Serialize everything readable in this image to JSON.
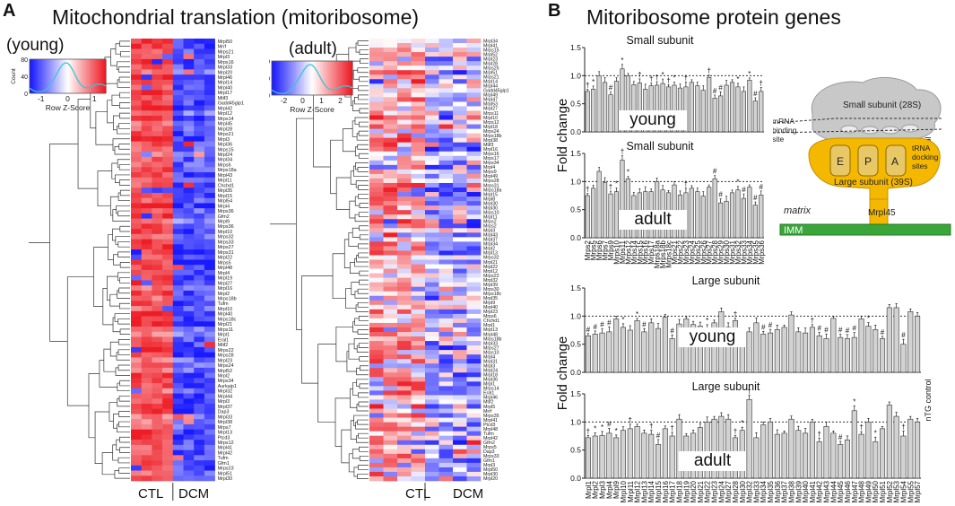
{
  "panel_a": {
    "letter": "A",
    "title": "Mitochondrial translation (mitoribosome)",
    "heatmaps": [
      {
        "id": "young",
        "label": "(young)",
        "key_title": "Row Z-Score",
        "count_label": "Count",
        "key_ticks": [
          "-1",
          "0",
          "1"
        ],
        "count_ticks": [
          "0",
          "40",
          "80"
        ],
        "genes": [
          "Mrpl50",
          "Mrrf",
          "Mrps21",
          "Mrpl3",
          "Mrps16",
          "Mrpl33",
          "Mrpl20",
          "Mrpl46",
          "Mrpl14",
          "Mrpl40",
          "Mrpl17",
          "Mtif3",
          "Gadd45gip1",
          "Mrpl42",
          "Mrpl12",
          "Mrps14",
          "Mrpl45",
          "Mrpl28",
          "Mrps21",
          "Mrpl3",
          "Mrpl36",
          "Mrps15",
          "Mrpl24",
          "Mrpl34",
          "Mrps6",
          "Mrps18a",
          "Mrpl43",
          "Mrpl11",
          "Chchd1",
          "Mrpl35",
          "Mrpl15",
          "Mrpl54",
          "Mrpl4",
          "Mrps36",
          "Gfm2",
          "Mrpl9",
          "Mrps36",
          "Mrpl10",
          "Mrps32",
          "Mrps33",
          "Mrps27",
          "Mrps31",
          "Mrpl22",
          "Mrps5",
          "Mrpl48",
          "Mrpl4",
          "Mrpl19",
          "Mrpl27",
          "Mrpl16",
          "Mrpl2",
          "Mrps18b",
          "Tufm",
          "Mrpl10",
          "Mrpl40",
          "Mrps18c",
          "Mrpl21",
          "Mrps11",
          "Mrpl1",
          "Eral1",
          "Mtif2",
          "Mrps22",
          "Mrps28",
          "Mrpl23",
          "Mrps24",
          "Mrpl52",
          "Mrpl2",
          "Mrps34",
          "Aurkaip1",
          "Mrpl32",
          "Mrpl44",
          "Mrpl3",
          "Mrpl37",
          "Dap3",
          "Mrpl33",
          "Mrpl38",
          "Mrps7",
          "Mrpl13",
          "Ptcd3",
          "Mrps12",
          "Mrpl41",
          "Mrpl42",
          "Tufm",
          "Gfm1",
          "Mrps23",
          "Mrpl51",
          "Mrpl30"
        ],
        "group_labels": [
          "CTL",
          "DCM"
        ]
      },
      {
        "id": "adult",
        "label": "(adult)",
        "key_title": "Row Z-Score",
        "count_label": "Count",
        "key_ticks": [
          "-2",
          "0",
          "1",
          "2"
        ],
        "count_ticks": [
          "0",
          "50",
          "100"
        ],
        "genes": [
          "Mrpl34",
          "Mrpl41",
          "Mrps15",
          "Mrpl52",
          "Mrpl23",
          "Mrpl28",
          "Mrps25",
          "Mrpl51",
          "Mrps21",
          "Mrpl14",
          "Mrpl44",
          "Gadd45gip1",
          "Mrpl49",
          "Mrpl47",
          "Mrpl53",
          "Mrpl27",
          "Mrps11",
          "Mrpl10",
          "Mrps12",
          "Mrpl18",
          "Mrps24",
          "Mrps18b",
          "Mrpl38",
          "Mtif3",
          "Mrpl16",
          "Mrps16",
          "Mrps17",
          "Mrps34",
          "Mrpl4",
          "Mrps9",
          "Mrpl49",
          "Mrps28",
          "Mrps31",
          "Mrps18a",
          "Mrpl15",
          "Mrpl8",
          "Mrpl30",
          "Mrpl30",
          "Mrps10",
          "Mrpl11",
          "Mrps2",
          "Mrps2",
          "Mrpl3",
          "Mrpl43",
          "Mrpl37",
          "Mrpl34",
          "Mrpl2",
          "Mrpl13",
          "Mrps32",
          "Mrpl21",
          "Mrpl22",
          "Mrpl12",
          "Mrps22",
          "Mrpl32",
          "Mrpl39",
          "Mrps30",
          "Mrps18c",
          "Mrpl35",
          "Mrpl9",
          "Mrpl40",
          "Mrpl23",
          "Mrps6",
          "Chchd1",
          "Mrpl1",
          "Mrpl13",
          "Mrpl48",
          "Mrps18b",
          "Mrpl33",
          "Mrps27",
          "Mrps10",
          "Mrpl4",
          "Mrpl31",
          "Mrpl3",
          "Mrpl24",
          "Mrpl18",
          "Mrpl36",
          "Mrpl1",
          "Mrps14",
          "Eral1",
          "Mrpl46",
          "Mtif2",
          "Mrpl5",
          "Mrrf",
          "Mrps35",
          "Mrpl41",
          "Ptcd3",
          "Mrpl48",
          "Tufm",
          "Mrpl42",
          "Gfm2",
          "Mrps5",
          "Dap3",
          "Mrps33",
          "Gfm1",
          "Mrpl3",
          "Mrpl50",
          "Mrpl30",
          "Mrpl20"
        ],
        "group_labels": [
          "CTL",
          "DCM"
        ]
      }
    ],
    "colors": {
      "high": "#ee1c25",
      "mid": "#ffffff",
      "low": "#1a1aff",
      "density": "#39c6d8"
    }
  },
  "panel_b": {
    "letter": "B",
    "title": "Mitoribosome protein genes",
    "y_label": "Fold change",
    "side_label": "nTG control",
    "small_genes": [
      "Mrps2",
      "Mrps5",
      "Mrps6",
      "Mrps7",
      "Mrps9",
      "Mrps10",
      "Mrps11",
      "Mrps12",
      "Mrps14",
      "Mrps15",
      "Mrps16",
      "Mrps17",
      "Mrps18a",
      "Mrps18b",
      "Mrps18c",
      "Mrps21",
      "Mrps22",
      "Mrps23",
      "Mrps24",
      "Mrps25",
      "Mrps26",
      "Mrps27",
      "Mrps28",
      "Mrps29",
      "Mrps30",
      "Mrps31",
      "Mrps32",
      "Mrps33",
      "Mrps34",
      "Mrps35",
      "Mrps36"
    ],
    "large_genes": [
      "Mrpl1",
      "Mrpl2",
      "Mrpl3",
      "Mrpl4",
      "Mrpl9",
      "Mrpl10",
      "Mrpl11",
      "Mrpl12",
      "Mrpl13",
      "Mrpl14",
      "Mrpl15",
      "Mrpl16",
      "Mrpl17",
      "Mrpl18",
      "Mrpl19",
      "Mrpl20",
      "Mrpl21",
      "Mrpl22",
      "Mrpl23",
      "Mrpl24",
      "Mrpl27",
      "Mrpl28",
      "Mrpl30",
      "Mrpl32",
      "Mrpl33",
      "Mrpl34",
      "Mrpl35",
      "Mrpl36",
      "Mrpl37",
      "Mrpl38",
      "Mrpl39",
      "Mrpl40",
      "Mrpl41",
      "Mrpl42",
      "Mrpl43",
      "Mrpl44",
      "Mrpl45",
      "Mrpl46",
      "Mrpl47",
      "Mrpl48",
      "Mrpl49",
      "Mrpl50",
      "Mrpl51",
      "Mrpl52",
      "Mrpl53",
      "Mrpl54",
      "Mrpl55",
      "Mrpl57"
    ],
    "charts": [
      {
        "id": "small-young",
        "title": "Small subunit",
        "age": "young",
        "axis": [
          "0.0",
          "0.5",
          "1.0",
          "1.5"
        ],
        "ymax": 1.5,
        "values": [
          0.72,
          0.76,
          1.0,
          0.88,
          0.66,
          0.9,
          1.12,
          1.0,
          0.84,
          0.87,
          0.76,
          0.82,
          0.83,
          0.86,
          0.8,
          0.83,
          0.78,
          0.8,
          0.88,
          0.82,
          0.74,
          0.97,
          0.6,
          0.64,
          0.83,
          0.88,
          0.8,
          0.72,
          0.92,
          0.55,
          0.72
        ],
        "marks": [
          "†",
          "*",
          "",
          "",
          "#",
          "",
          "*",
          "",
          "",
          "†",
          "",
          "†",
          "†",
          "*",
          "†",
          "*",
          "",
          "†",
          "",
          "",
          "",
          "†",
          "#",
          "#",
          "",
          "",
          "*",
          "",
          "*",
          "#",
          "†"
        ]
      },
      {
        "id": "small-adult",
        "title": "Small subunit",
        "age": "adult",
        "axis": [
          "0.0",
          "0.5",
          "1.0",
          "1.5"
        ],
        "ymax": 1.5,
        "values": [
          0.75,
          0.88,
          1.18,
          0.98,
          0.78,
          0.82,
          1.38,
          1.05,
          0.75,
          0.8,
          0.82,
          0.82,
          1.0,
          0.85,
          0.8,
          0.94,
          0.76,
          0.8,
          0.88,
          0.82,
          0.74,
          0.9,
          1.05,
          0.62,
          0.65,
          0.8,
          0.85,
          0.7,
          0.9,
          0.58,
          0.76
        ],
        "marks": [
          "†",
          "",
          "",
          "",
          "†",
          "*",
          "†",
          "*",
          "",
          "",
          "",
          "",
          "",
          "",
          "",
          "",
          "",
          "†",
          "",
          "",
          "",
          "",
          "#",
          "#",
          "",
          "",
          "*",
          "#",
          "",
          "#",
          "#"
        ]
      },
      {
        "id": "large-young",
        "title": "Large subunit",
        "age": "young",
        "axis": [
          "0.0",
          "0.5",
          "1.0",
          "1.5"
        ],
        "ymax": 1.5,
        "values": [
          0.65,
          0.68,
          0.7,
          0.72,
          0.95,
          0.8,
          0.75,
          0.92,
          0.72,
          0.88,
          0.78,
          0.98,
          0.6,
          0.86,
          0.95,
          0.85,
          0.82,
          0.76,
          0.88,
          1.08,
          0.8,
          0.92,
          0.7,
          0.72,
          0.88,
          0.68,
          0.7,
          0.76,
          0.8,
          1.02,
          0.72,
          0.7,
          0.8,
          0.65,
          0.6,
          0.96,
          0.62,
          0.6,
          0.62,
          0.95,
          0.82,
          0.76,
          0.6,
          1.15,
          1.15,
          0.5,
          1.08,
          1.0
        ],
        "marks": [
          "#",
          "#",
          "#",
          "#",
          "",
          "*",
          "",
          "*",
          "#",
          "",
          "",
          "",
          "#",
          "",
          "",
          "",
          "",
          "*",
          "",
          "",
          "",
          "†",
          "",
          "",
          "",
          "#",
          "#",
          "",
          "",
          "",
          "",
          "",
          "†",
          "#",
          "#",
          "",
          "#",
          "#",
          "#",
          "",
          "*",
          "",
          "#",
          "",
          "",
          "#",
          "",
          ""
        ]
      },
      {
        "id": "large-adult",
        "title": "Large subunit",
        "age": "adult",
        "axis": [
          "0.0",
          "0.5",
          "1.0",
          "1.5"
        ],
        "ymax": 1.5,
        "values": [
          0.72,
          0.75,
          0.76,
          0.8,
          0.72,
          0.85,
          0.88,
          0.92,
          0.8,
          0.78,
          0.6,
          0.88,
          0.75,
          1.05,
          0.75,
          0.8,
          0.9,
          1.0,
          1.05,
          1.1,
          1.05,
          0.72,
          0.85,
          1.4,
          0.72,
          0.95,
          1.0,
          0.78,
          0.8,
          1.05,
          0.85,
          0.8,
          1.0,
          0.65,
          0.92,
          0.8,
          0.6,
          0.68,
          1.2,
          0.78,
          1.0,
          0.65,
          0.88,
          1.3,
          1.1,
          0.75,
          1.05,
          1.0
        ],
        "marks": [
          "†",
          "*",
          "*",
          "#",
          "*",
          "",
          "†",
          "",
          "",
          "†",
          "#",
          "",
          "†",
          "",
          "",
          "",
          "",
          "",
          "",
          "",
          "",
          "†",
          "*",
          "†",
          "",
          "",
          "",
          "",
          "",
          "",
          "",
          "",
          "",
          "†",
          "",
          "",
          "#",
          "",
          "*",
          "†",
          "",
          "*",
          "",
          "",
          "",
          "†",
          "",
          ""
        ]
      }
    ],
    "diagram": {
      "small_label": "Small subunit (28S)",
      "mrna_label_1": "mRNA",
      "mrna_label_2": "binding",
      "mrna_label_3": "site",
      "large_label": "Large subunit (39S)",
      "trna_label_1": "tRNA",
      "trna_label_2": "docking",
      "trna_label_3": "sites",
      "site_e": "E",
      "site_p": "P",
      "site_a": "A",
      "matrix_label": "matrix",
      "anchor_label": "Mrpl45",
      "membrane_label": "IMM"
    },
    "colors": {
      "bar": "#d2d2d2",
      "large_subunit": "#f5b800",
      "small_subunit": "#c4c4c4",
      "membrane": "#3aa63a"
    }
  }
}
